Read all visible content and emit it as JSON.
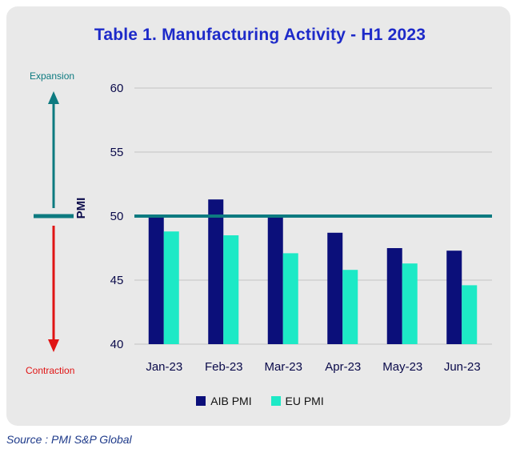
{
  "title": "Table 1. Manufacturing Activity - H1 2023",
  "annotations": {
    "expansion": "Expansion",
    "contraction": "Contraction"
  },
  "source": "Source : PMI S&P Global",
  "colors": {
    "aib": "#0b0f7a",
    "eu": "#1de9c6",
    "threshold": "#0d7a80",
    "arrow_up": "#0d7a80",
    "arrow_down": "#e01414",
    "title": "#1d2ac9"
  },
  "chart_data": {
    "type": "bar",
    "ylabel": "PMI",
    "xlabel": "",
    "ylim": [
      40,
      60
    ],
    "yticks": [
      40,
      45,
      50,
      55,
      60
    ],
    "categories": [
      "Jan-23",
      "Feb-23",
      "Mar-23",
      "Apr-23",
      "May-23",
      "Jun-23"
    ],
    "series": [
      {
        "name": "AIB PMI",
        "values": [
          50.0,
          51.3,
          49.9,
          48.7,
          47.5,
          47.3
        ]
      },
      {
        "name": "EU PMI",
        "values": [
          48.8,
          48.5,
          47.1,
          45.8,
          46.3,
          44.6
        ]
      }
    ],
    "threshold": 50,
    "grid": true,
    "legend_position": "bottom"
  }
}
